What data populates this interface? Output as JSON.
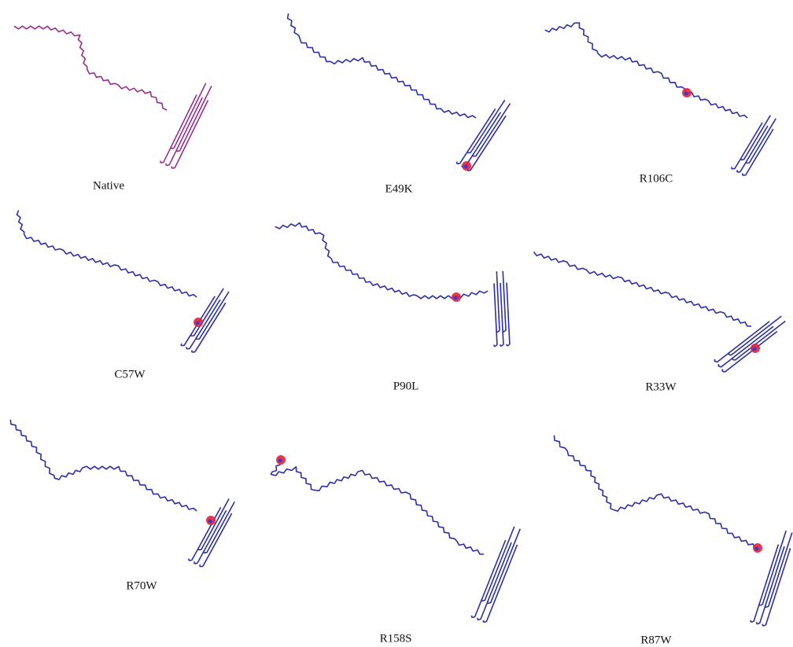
{
  "panels": [
    {
      "label": "Native"
    },
    {
      "label": "E49K"
    },
    {
      "label": "R106C"
    },
    {
      "label": "C57W"
    },
    {
      "label": "P90L"
    },
    {
      "label": "R33W"
    },
    {
      "label": "R70W"
    },
    {
      "label": "R158S"
    },
    {
      "label": "R87W"
    }
  ]
}
